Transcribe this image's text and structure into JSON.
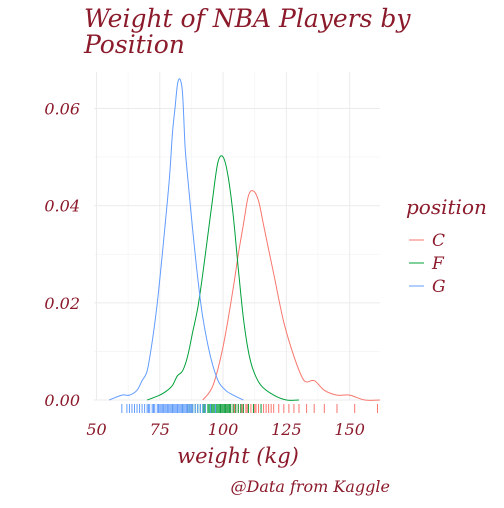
{
  "chart_data": {
    "type": "density",
    "title": "Weight of NBA Players by Position",
    "title_lines": [
      "Weight of NBA Players by",
      "Position"
    ],
    "xlabel": "weight (kg)",
    "ylabel": "",
    "caption": "@Data from Kaggle",
    "xlim": [
      49,
      162
    ],
    "ylim": [
      0,
      0.0675
    ],
    "x_ticks": [
      50,
      75,
      100,
      125,
      150
    ],
    "y_ticks": [
      0.0,
      0.02,
      0.04,
      0.06
    ],
    "y_tick_labels": [
      "0.00",
      "0.02",
      "0.04",
      "0.06"
    ],
    "grid": true,
    "legend": {
      "title": "position",
      "placement": "right"
    },
    "series": [
      {
        "name": "C",
        "color": "#F8766D",
        "x": [
          92,
          96,
          100,
          104,
          106,
          108,
          110,
          112,
          114,
          116,
          118,
          120,
          124,
          128,
          132,
          136,
          140,
          145,
          150,
          156,
          162
        ],
        "y": [
          0.0,
          0.003,
          0.011,
          0.023,
          0.03,
          0.036,
          0.042,
          0.043,
          0.041,
          0.036,
          0.031,
          0.026,
          0.016,
          0.009,
          0.004,
          0.004,
          0.002,
          0.001,
          0.001,
          0.0,
          0.0
        ],
        "rug": [
          97,
          99,
          100,
          101,
          102,
          103,
          104,
          104.5,
          105,
          106,
          107,
          107.5,
          108,
          109,
          109.5,
          110,
          111,
          112,
          112.5,
          113,
          114,
          115,
          116,
          117,
          118,
          119,
          120,
          122,
          124,
          126,
          128,
          130,
          133,
          136,
          140,
          145,
          152,
          161
        ]
      },
      {
        "name": "F",
        "color": "#00A03A",
        "x": [
          70,
          75,
          78,
          80,
          82,
          84,
          86,
          88,
          90,
          92,
          94,
          96,
          98,
          100,
          102,
          104,
          106,
          108,
          110,
          112,
          115,
          120,
          125,
          130
        ],
        "y": [
          0.0,
          0.001,
          0.002,
          0.003,
          0.005,
          0.006,
          0.009,
          0.014,
          0.019,
          0.026,
          0.034,
          0.042,
          0.049,
          0.05,
          0.046,
          0.038,
          0.027,
          0.017,
          0.01,
          0.006,
          0.003,
          0.001,
          0.0,
          0.0
        ],
        "rug": [
          80,
          84,
          86,
          87,
          88,
          89,
          90,
          91,
          92,
          92.5,
          93,
          94,
          94.5,
          95,
          95.5,
          96,
          96.5,
          97,
          97.5,
          98,
          98.5,
          99,
          99.5,
          100,
          100.5,
          101,
          101.5,
          102,
          102.5,
          103,
          104,
          105,
          106,
          107,
          108,
          110,
          112,
          115
        ]
      },
      {
        "name": "G",
        "color": "#619CFF",
        "x": [
          55,
          60,
          63,
          66,
          68,
          70,
          72,
          74,
          76,
          78,
          79,
          80,
          81,
          82,
          83,
          84,
          85,
          86,
          88,
          90,
          92,
          95,
          98,
          101,
          104,
          108
        ],
        "y": [
          0.0,
          0.001,
          0.001,
          0.002,
          0.004,
          0.006,
          0.012,
          0.02,
          0.03,
          0.041,
          0.047,
          0.055,
          0.06,
          0.065,
          0.066,
          0.063,
          0.052,
          0.046,
          0.035,
          0.025,
          0.017,
          0.009,
          0.004,
          0.002,
          0.001,
          0.0
        ],
        "rug": [
          60,
          62,
          63,
          64,
          65,
          66,
          67,
          68,
          69,
          70,
          70.5,
          71,
          72,
          72.5,
          73,
          74,
          74.5,
          75,
          75.5,
          76,
          76.5,
          77,
          77.5,
          78,
          78.5,
          79,
          79.5,
          80,
          80.5,
          81,
          81.5,
          82,
          82.5,
          83,
          83.5,
          84,
          84.5,
          85,
          85.5,
          86,
          86.5,
          87,
          87.5,
          88,
          89,
          90,
          91,
          92,
          93,
          95,
          97
        ]
      }
    ]
  }
}
